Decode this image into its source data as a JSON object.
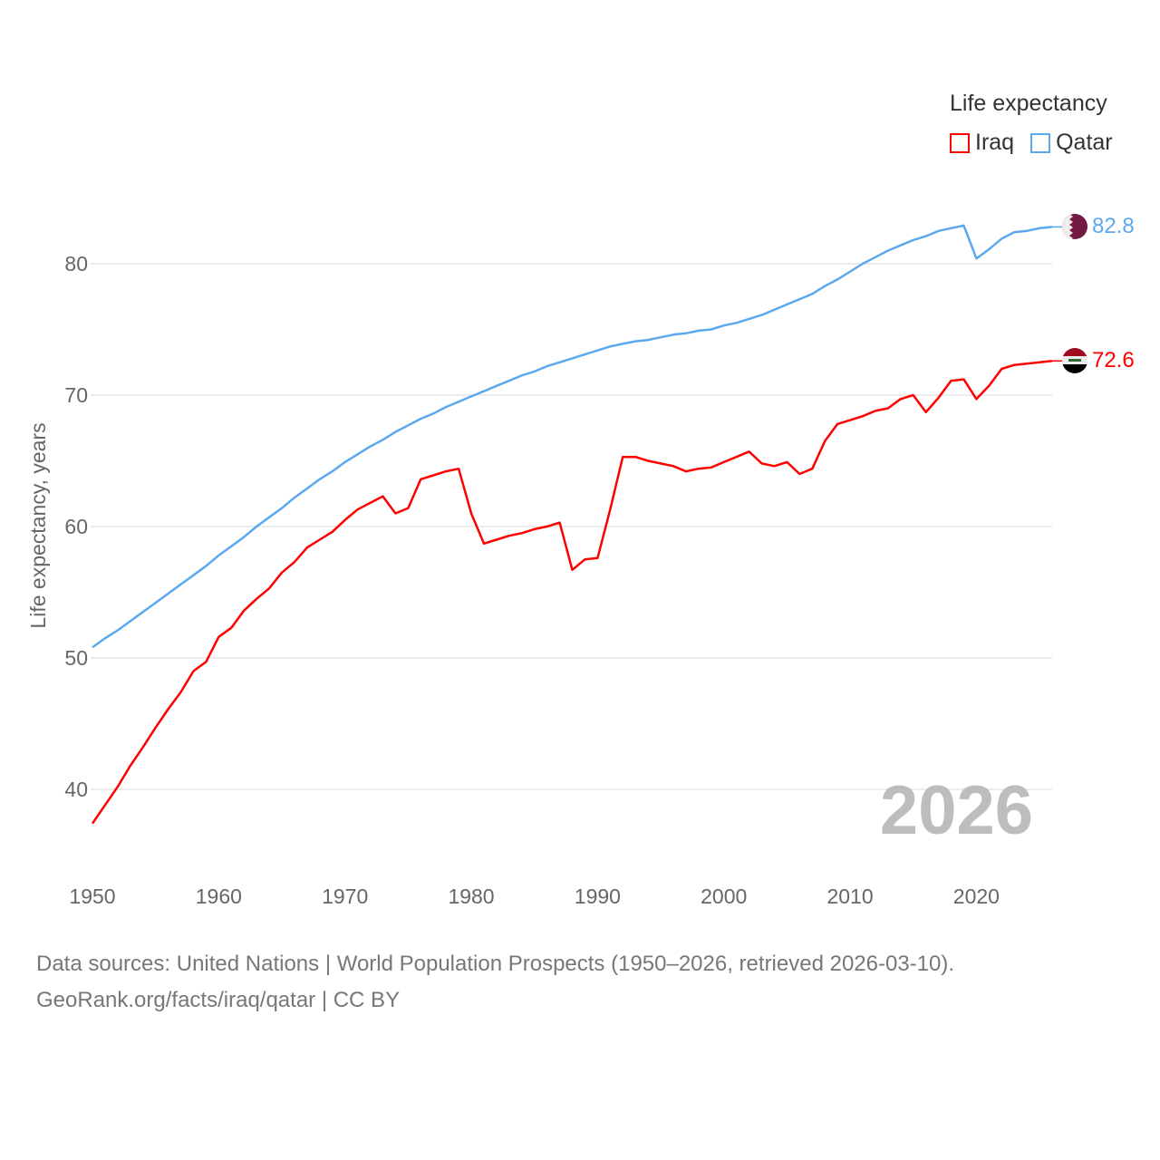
{
  "chart_data": {
    "type": "line",
    "ylabel": "Life expectancy, years",
    "xlabel": "",
    "xlim": [
      1950,
      2026
    ],
    "ylim": [
      34.5,
      87
    ],
    "xticks": [
      1950,
      1960,
      1970,
      1980,
      1990,
      2000,
      2010,
      2020
    ],
    "yticks": [
      40,
      50,
      60,
      70,
      80
    ],
    "grid": true,
    "year_watermark": "2026",
    "legend": {
      "title": "Life expectancy",
      "position": "top-right"
    },
    "x": [
      1950,
      1951,
      1952,
      1953,
      1954,
      1955,
      1956,
      1957,
      1958,
      1959,
      1960,
      1961,
      1962,
      1963,
      1964,
      1965,
      1966,
      1967,
      1968,
      1969,
      1970,
      1971,
      1972,
      1973,
      1974,
      1975,
      1976,
      1977,
      1978,
      1979,
      1980,
      1981,
      1982,
      1983,
      1984,
      1985,
      1986,
      1987,
      1988,
      1989,
      1990,
      1991,
      1992,
      1993,
      1994,
      1995,
      1996,
      1997,
      1998,
      1999,
      2000,
      2001,
      2002,
      2003,
      2004,
      2005,
      2006,
      2007,
      2008,
      2009,
      2010,
      2011,
      2012,
      2013,
      2014,
      2015,
      2016,
      2017,
      2018,
      2019,
      2020,
      2021,
      2022,
      2023,
      2024,
      2025,
      2026
    ],
    "series": [
      {
        "name": "Iraq",
        "color": "#ff0000",
        "end_label": "72.6",
        "values": [
          37.4,
          38.8,
          40.2,
          41.8,
          43.2,
          44.7,
          46.1,
          47.4,
          49.0,
          49.7,
          51.6,
          52.3,
          53.6,
          54.5,
          55.3,
          56.5,
          57.3,
          58.4,
          59.0,
          59.6,
          60.5,
          61.3,
          61.8,
          62.3,
          61.0,
          61.4,
          63.6,
          63.9,
          64.2,
          64.4,
          61.0,
          58.7,
          59.0,
          59.3,
          59.5,
          59.8,
          60.0,
          60.3,
          56.7,
          57.5,
          57.6,
          61.3,
          65.3,
          65.3,
          65.0,
          64.8,
          64.6,
          64.2,
          64.4,
          64.5,
          64.9,
          65.3,
          65.7,
          64.8,
          64.6,
          64.9,
          64.0,
          64.4,
          66.5,
          67.8,
          68.1,
          68.4,
          68.8,
          69.0,
          69.7,
          70.0,
          68.7,
          69.8,
          71.1,
          71.2,
          69.7,
          70.7,
          72.0,
          72.3,
          72.4,
          72.5,
          72.6
        ]
      },
      {
        "name": "Qatar",
        "color": "#5ca8ee",
        "end_label": "82.8",
        "values": [
          50.8,
          51.5,
          52.1,
          52.8,
          53.5,
          54.2,
          54.9,
          55.6,
          56.3,
          57.0,
          57.8,
          58.5,
          59.2,
          60.0,
          60.7,
          61.4,
          62.2,
          62.9,
          63.6,
          64.2,
          64.9,
          65.5,
          66.1,
          66.6,
          67.2,
          67.7,
          68.2,
          68.6,
          69.1,
          69.5,
          69.9,
          70.3,
          70.7,
          71.1,
          71.5,
          71.8,
          72.2,
          72.5,
          72.8,
          73.1,
          73.4,
          73.7,
          73.9,
          74.1,
          74.2,
          74.4,
          74.6,
          74.7,
          74.9,
          75.0,
          75.3,
          75.5,
          75.8,
          76.1,
          76.5,
          76.9,
          77.3,
          77.7,
          78.3,
          78.8,
          79.4,
          80.0,
          80.5,
          81.0,
          81.4,
          81.8,
          82.1,
          82.5,
          82.7,
          82.9,
          80.4,
          81.1,
          81.9,
          82.4,
          82.5,
          82.7,
          82.8
        ]
      }
    ]
  },
  "source": {
    "line1": "Data sources: United Nations | World Population Prospects (1950–2026, retrieved 2026-03-10).",
    "line2": "GeoRank.org/facts/iraq/qatar | CC BY"
  }
}
